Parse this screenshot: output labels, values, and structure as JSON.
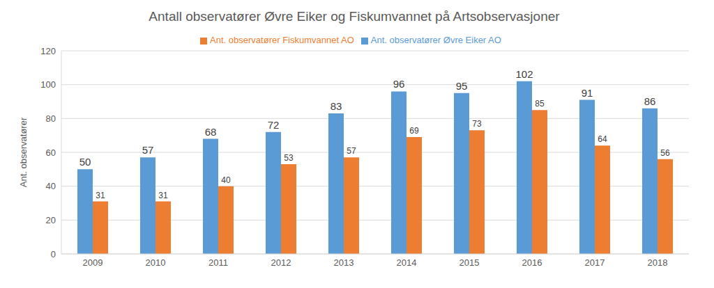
{
  "chart_data": {
    "type": "bar",
    "title": "Antall observatører Øvre Eiker og Fiskumvannet på Artsobservasjoner",
    "y_label": "Ant. observatører",
    "categories": [
      "2009",
      "2010",
      "2011",
      "2012",
      "2013",
      "2014",
      "2015",
      "2016",
      "2017",
      "2018"
    ],
    "series": [
      {
        "name": "Ant. observatører Øvre Eiker AO",
        "color": "#5b9bd5",
        "values": [
          50,
          57,
          68,
          72,
          83,
          96,
          95,
          102,
          91,
          86
        ]
      },
      {
        "name": "Ant. observatører Fiskumvannet AO",
        "color": "#ed7d31",
        "values": [
          31,
          31,
          40,
          53,
          57,
          69,
          73,
          85,
          64,
          56
        ]
      }
    ],
    "ylim": [
      0,
      120
    ],
    "yticks": [
      0,
      20,
      40,
      60,
      80,
      100,
      120
    ],
    "grid": true,
    "legend": "top",
    "data_labels": true
  }
}
